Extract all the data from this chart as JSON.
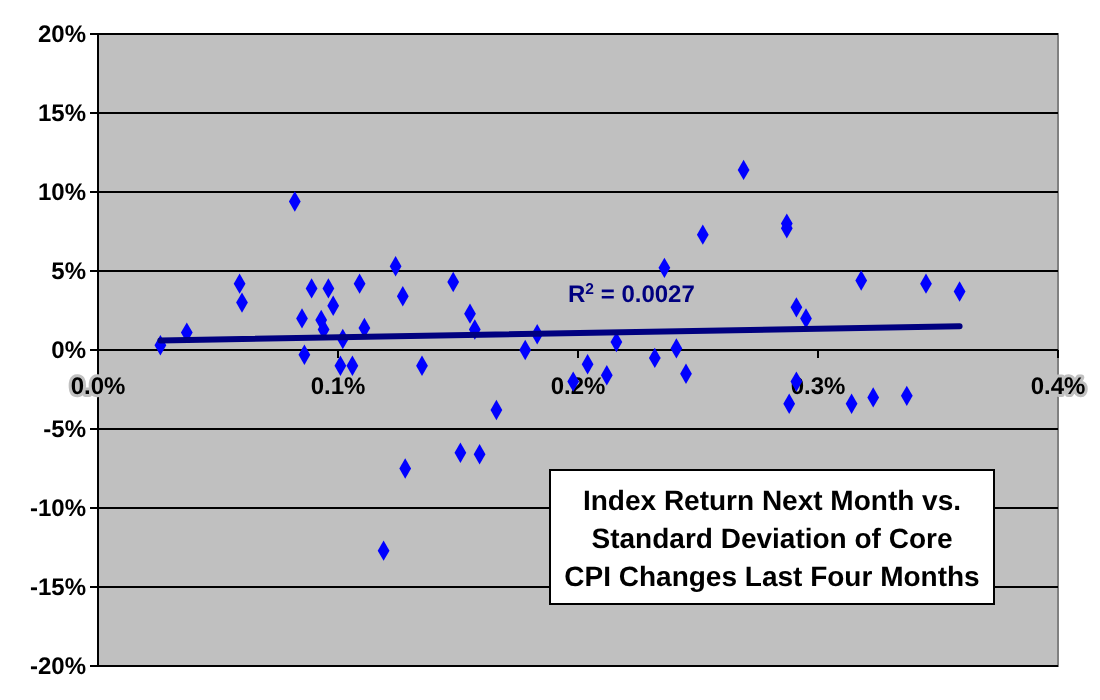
{
  "chart_data": {
    "type": "scatter",
    "title": "Index Return Next Month vs. Standard Deviation of  Core CPI Changes Last Four Months",
    "xlim": [
      0,
      0.4
    ],
    "xticks": [
      {
        "value": 0,
        "label": "0.0%"
      },
      {
        "value": 0.1,
        "label": "0.1%"
      },
      {
        "value": 0.2,
        "label": "0.2%"
      },
      {
        "value": 0.3,
        "label": "0.3%"
      },
      {
        "value": 0.4,
        "label": "0.4%"
      }
    ],
    "ylim": [
      -20,
      20
    ],
    "yticks": [
      {
        "value": -20,
        "label": "-20%"
      },
      {
        "value": -15,
        "label": "-15%"
      },
      {
        "value": -10,
        "label": "-10%"
      },
      {
        "value": -5,
        "label": "-5%"
      },
      {
        "value": 0,
        "label": "0%"
      },
      {
        "value": 5,
        "label": "5%"
      },
      {
        "value": 10,
        "label": "10%"
      },
      {
        "value": 15,
        "label": "15%"
      },
      {
        "value": 20,
        "label": "20%"
      }
    ],
    "grid": "y",
    "annotations": [
      "R$^{2}$ = 0.0027"
    ],
    "series": [
      {
        "color": "#0000ff",
        "marker": "diamond",
        "x": [
          0.026,
          0.037,
          0.059,
          0.06,
          0.082,
          0.085,
          0.086,
          0.089,
          0.093,
          0.094,
          0.096,
          0.098,
          0.101,
          0.102,
          0.106,
          0.109,
          0.111,
          0.124,
          0.127,
          0.135,
          0.148,
          0.155,
          0.157,
          0.178,
          0.183,
          0.119,
          0.128,
          0.151,
          0.159,
          0.166,
          0.269,
          0.252,
          0.287,
          0.287,
          0.236,
          0.318,
          0.345,
          0.359,
          0.291,
          0.295,
          0.216,
          0.232,
          0.241,
          0.204,
          0.212,
          0.245,
          0.198,
          0.291,
          0.288,
          0.314,
          0.323,
          0.337
        ],
        "values": [
          0.3,
          1.1,
          4.2,
          3.0,
          9.4,
          2.0,
          -0.3,
          3.9,
          1.9,
          1.3,
          3.9,
          2.8,
          -1.0,
          0.7,
          -1.0,
          4.2,
          1.4,
          5.3,
          3.4,
          -1.0,
          4.3,
          2.3,
          1.3,
          0.0,
          1.0,
          -12.7,
          -7.5,
          -6.5,
          -6.6,
          -3.8,
          11.4,
          7.3,
          8.0,
          7.7,
          5.2,
          4.4,
          4.2,
          3.7,
          2.7,
          2.0,
          0.5,
          -0.5,
          0.1,
          -0.9,
          -1.6,
          -1.5,
          -2.0,
          -2.0,
          -3.4,
          -3.4,
          -3.0,
          -2.9
        ]
      },
      {
        "type": "line",
        "color": "#000080",
        "line_style": "solid",
        "x": [
          0.026,
          0.359
        ],
        "values": [
          0.6,
          1.5
        ]
      }
    ]
  }
}
